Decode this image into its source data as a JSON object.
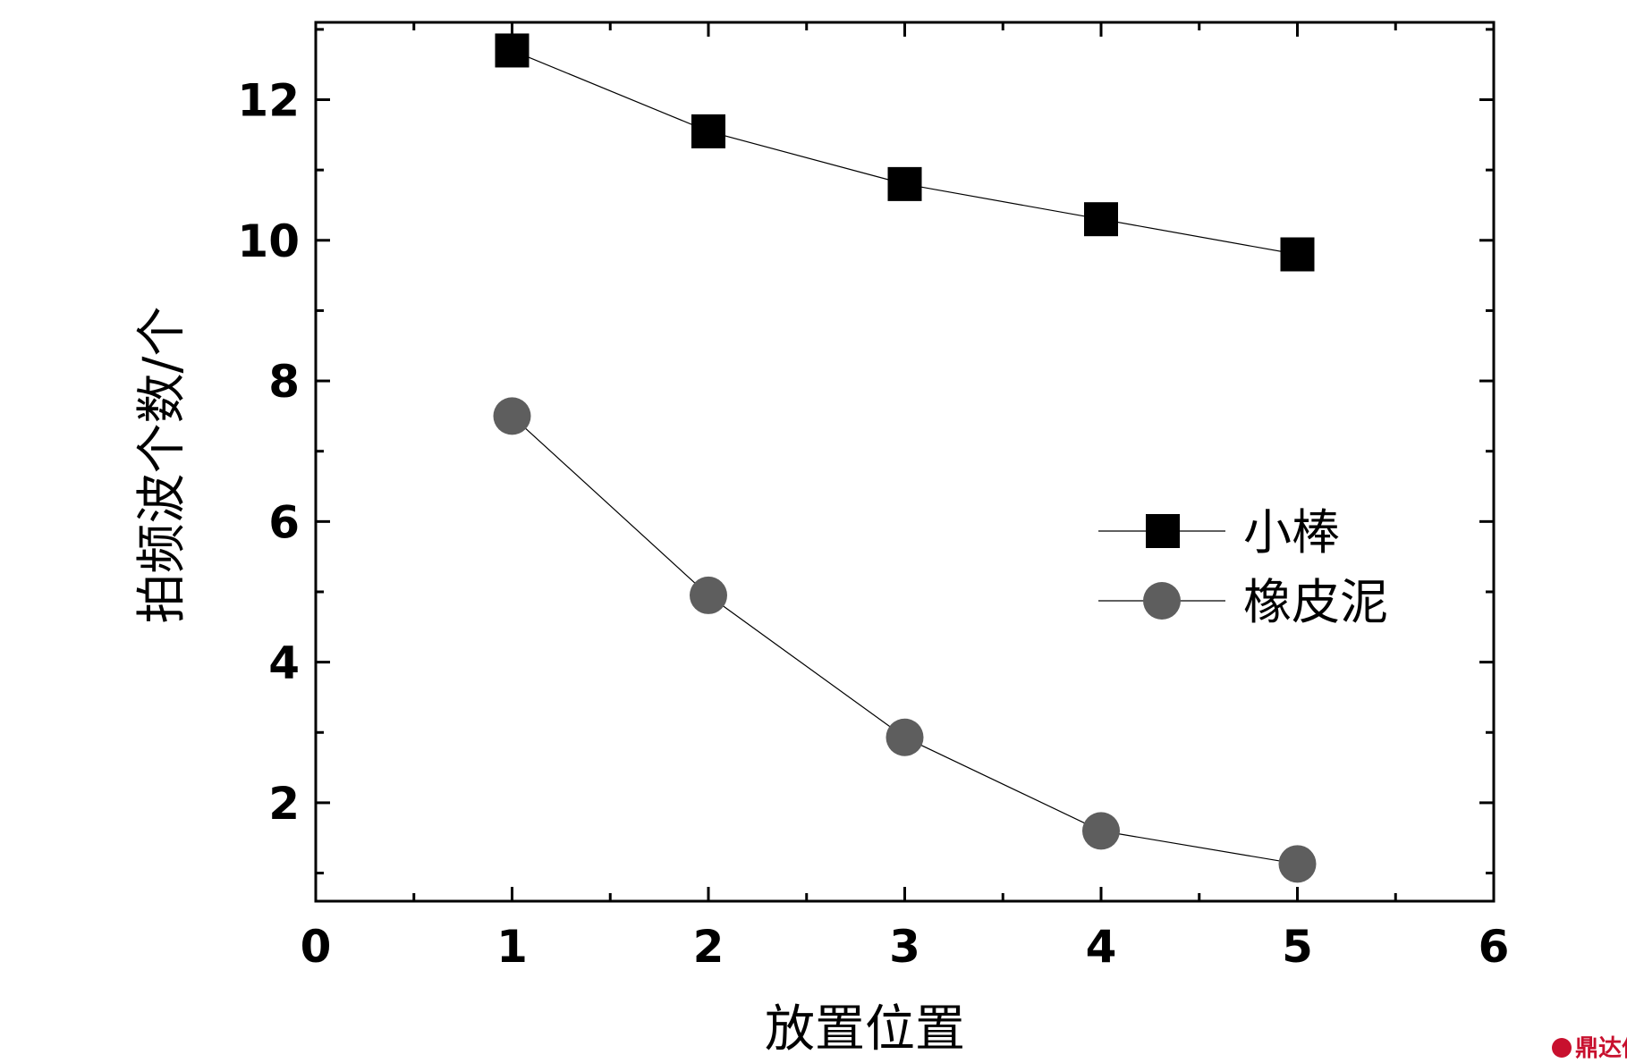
{
  "chart_data": {
    "type": "line",
    "xlabel": "放置位置",
    "ylabel": "拍频波个数/个",
    "xlim": [
      0,
      6
    ],
    "ylim": [
      0.6,
      13.1
    ],
    "x_ticks": [
      "0",
      "1",
      "2",
      "3",
      "4",
      "5",
      "6"
    ],
    "y_ticks": [
      "2",
      "4",
      "6",
      "8",
      "10",
      "12"
    ],
    "grid": false,
    "legend_position": "center-right",
    "x": [
      1,
      2,
      3,
      4,
      5
    ],
    "series": [
      {
        "name": "小棒",
        "marker": "square",
        "color": "#000000",
        "values": [
          12.7,
          11.55,
          10.8,
          10.3,
          9.8
        ]
      },
      {
        "name": "橡皮泥",
        "marker": "circle",
        "color": "#5e5e5e",
        "values": [
          7.5,
          4.95,
          2.93,
          1.6,
          1.13
        ]
      }
    ]
  },
  "watermark": {
    "text": "鼎达信",
    "color": "#c8102e"
  }
}
